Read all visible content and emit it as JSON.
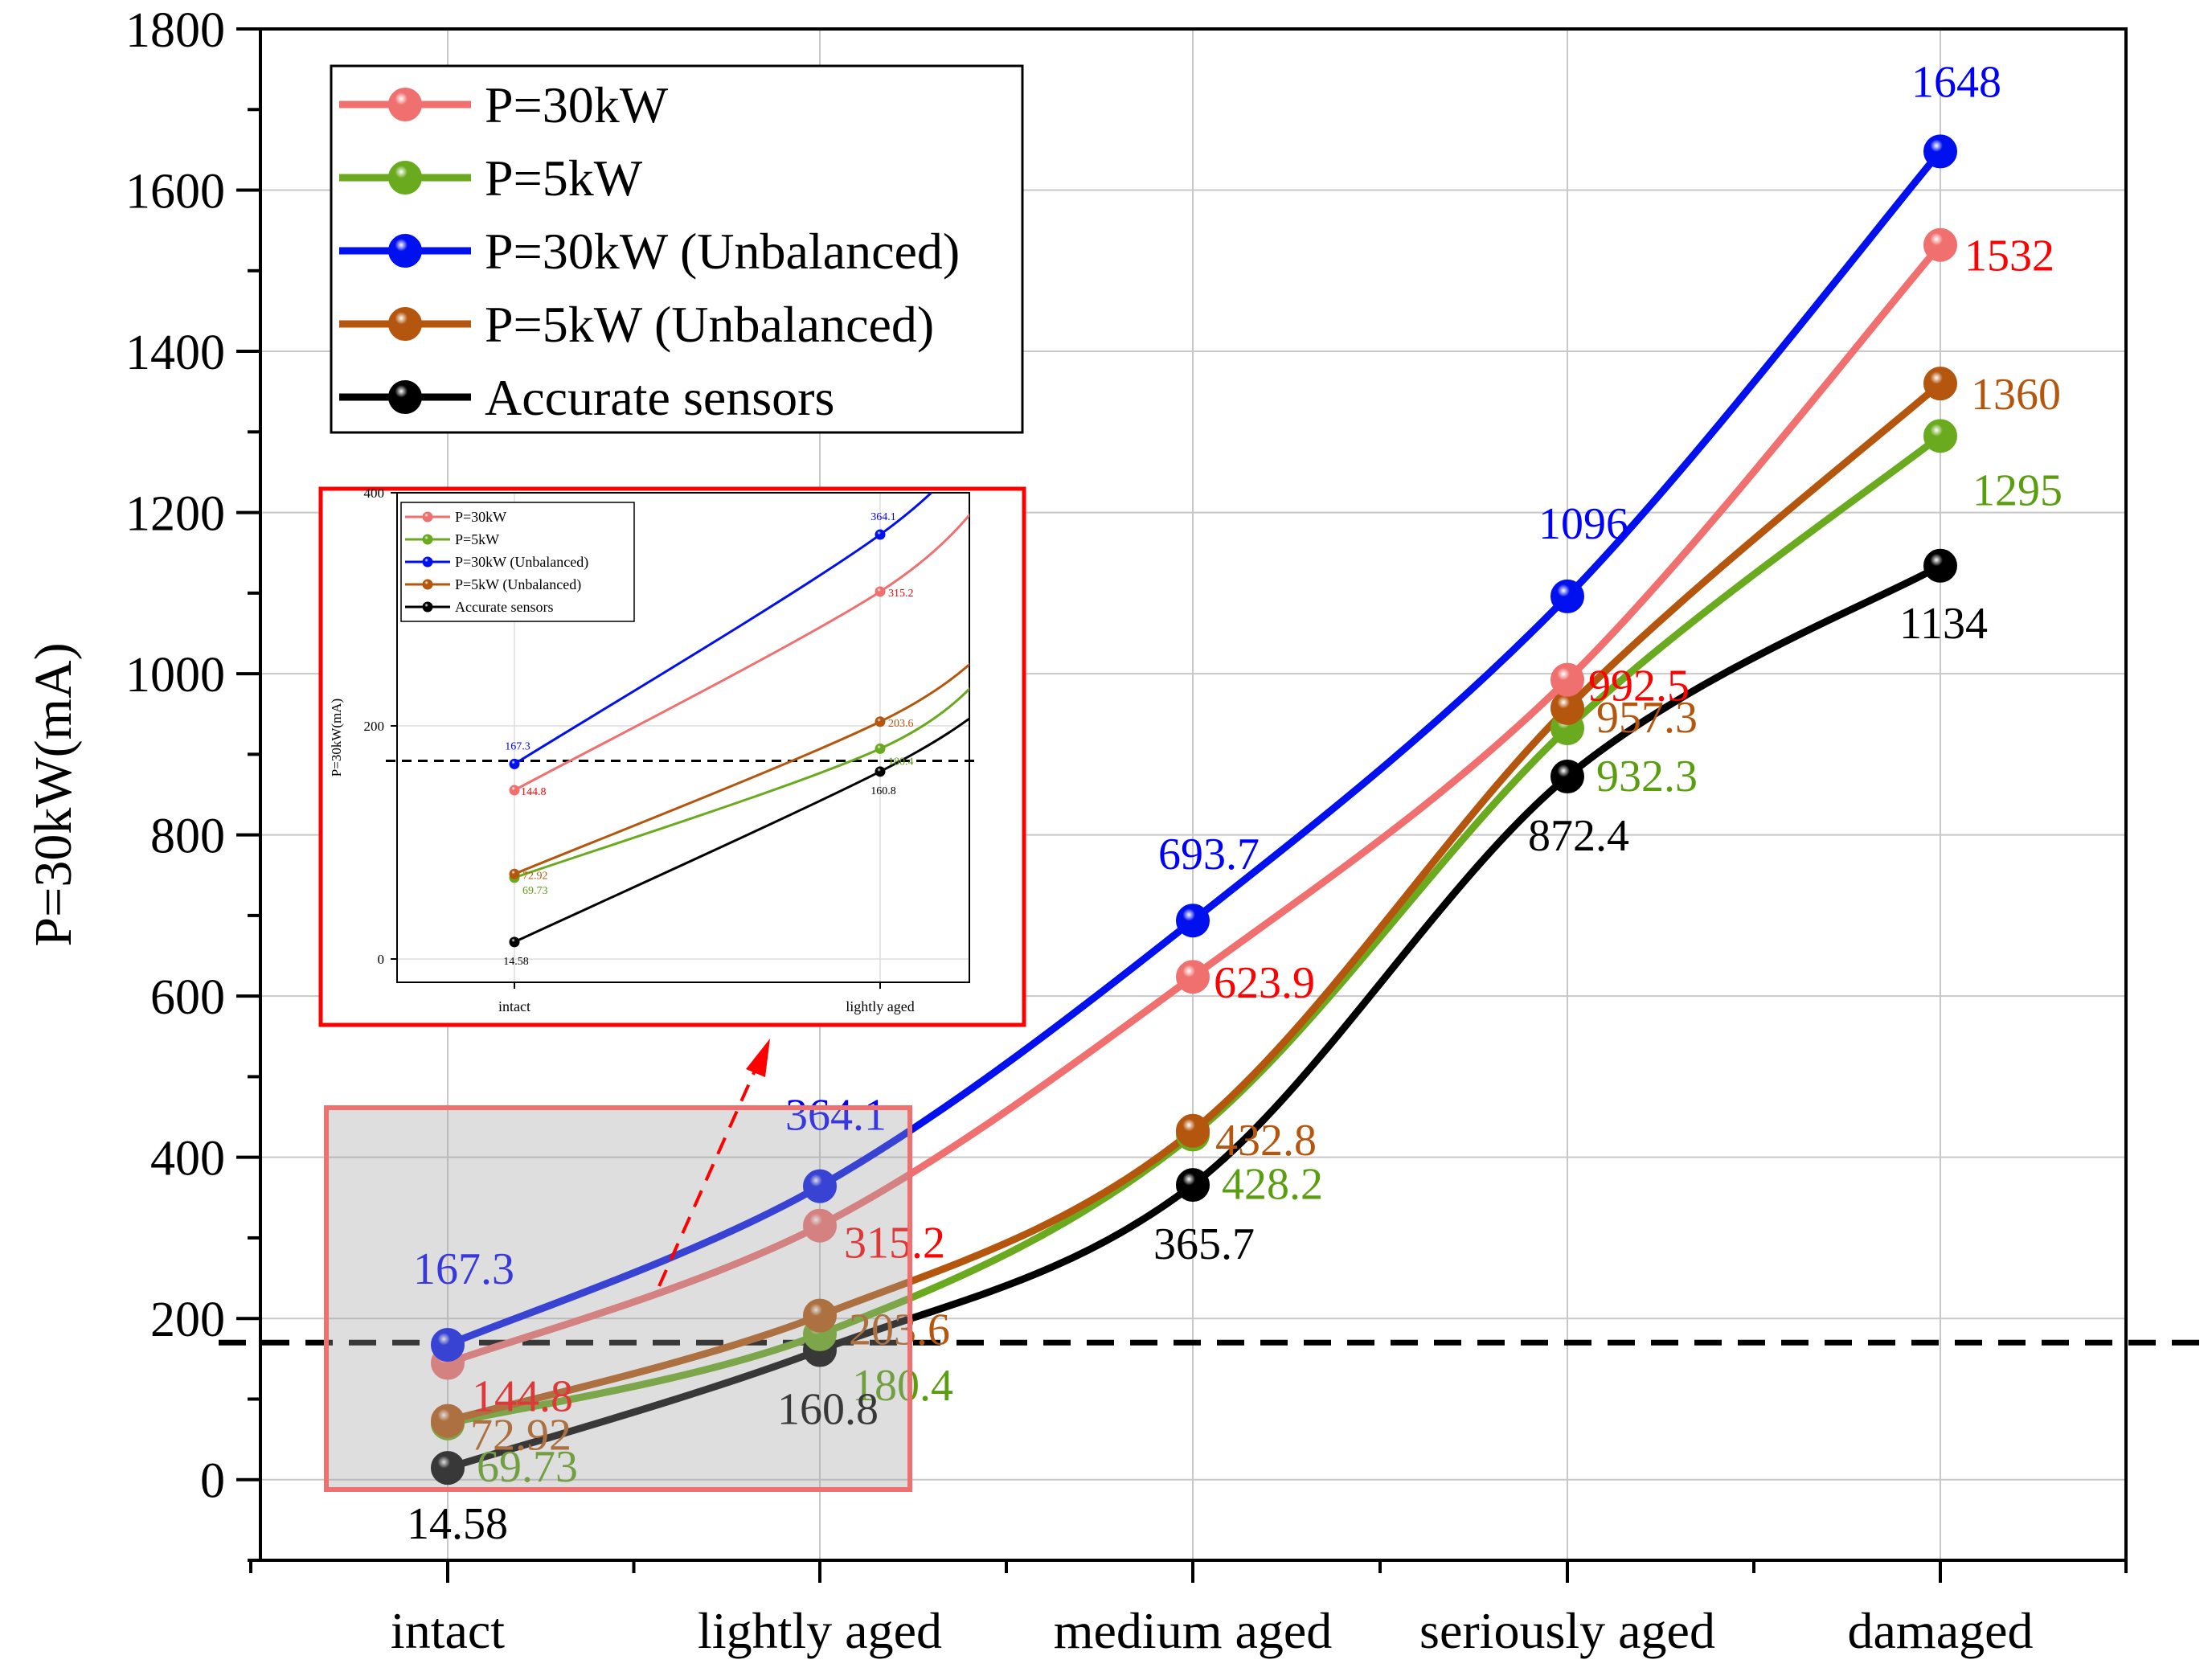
{
  "chart_data": {
    "type": "line",
    "title": "",
    "xlabel": "",
    "ylabel": "P=30kW(mA)",
    "categories": [
      "intact",
      "lightly aged",
      "medium aged",
      "seriously aged",
      "damaged"
    ],
    "ylim": [
      -100,
      1800
    ],
    "yticks": [
      0,
      200,
      400,
      600,
      800,
      1000,
      1200,
      1400,
      1600,
      1800
    ],
    "grid": true,
    "legend_position": "top-left",
    "threshold": 170,
    "series": [
      {
        "name": "P=30kW",
        "color": "#f07070",
        "label_color": "#ff0000",
        "values": [
          144.8,
          315.2,
          623.9,
          992.5,
          1532
        ],
        "labels": [
          "144.8",
          "315.2",
          "623.9",
          "992.5",
          "1532"
        ]
      },
      {
        "name": "P=5kW",
        "color": "#6aaa1e",
        "label_color": "#5a9e10",
        "values": [
          69.73,
          180.4,
          428.2,
          932.3,
          1295
        ],
        "labels": [
          "69.73",
          "180.4",
          "428.2",
          "932.3",
          "1295"
        ]
      },
      {
        "name": "P=30kW (Unbalanced)",
        "color": "#0010ee",
        "label_color": "#0000ff",
        "values": [
          167.3,
          364.1,
          693.7,
          1096,
          1648
        ],
        "labels": [
          "167.3",
          "364.1",
          "693.7",
          "1096",
          "1648"
        ]
      },
      {
        "name": "P=5kW (Unbalanced)",
        "color": "#b4560e",
        "label_color": "#b4560e",
        "values": [
          72.92,
          203.6,
          432.8,
          957.3,
          1360
        ],
        "labels": [
          "72.92",
          "203.6",
          "432.8",
          "957.3",
          "1360"
        ]
      },
      {
        "name": "Accurate sensors",
        "color": "#000000",
        "label_color": "#000000",
        "values": [
          14.58,
          160.8,
          365.7,
          872.4,
          1134
        ],
        "labels": [
          "14.58",
          "160.8",
          "365.7",
          "872.4",
          "1134"
        ]
      }
    ],
    "inset": {
      "ylabel": "P=30kW(mA)",
      "categories": [
        "intact",
        "lightly aged"
      ],
      "yticks": [
        0,
        200,
        400
      ],
      "ylim": [
        -20,
        400
      ]
    }
  }
}
